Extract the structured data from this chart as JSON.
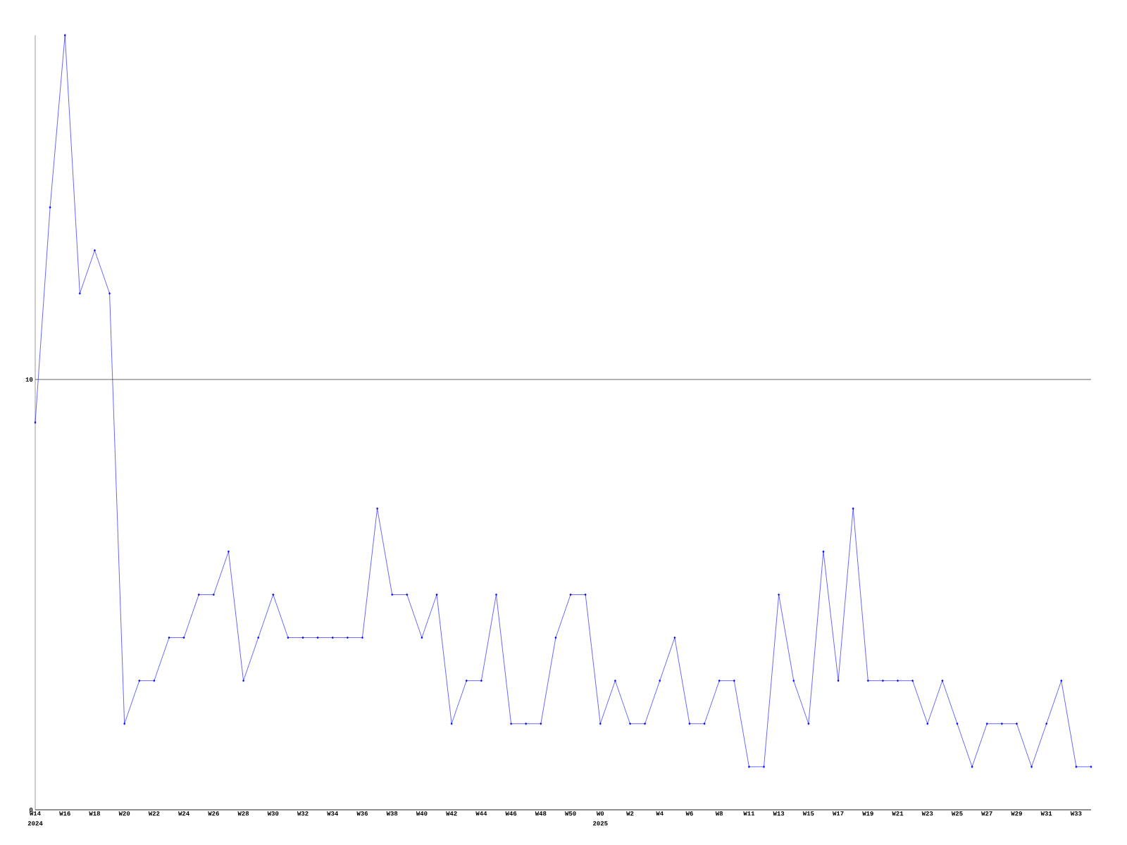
{
  "chart_data": {
    "type": "line",
    "categories": [
      "W14",
      null,
      "W16",
      null,
      "W18",
      null,
      "W20",
      null,
      "W22",
      null,
      "W24",
      null,
      "W26",
      null,
      "W28",
      null,
      "W30",
      null,
      "W32",
      null,
      "W34",
      null,
      "W36",
      null,
      "W38",
      null,
      "W40",
      null,
      "W42",
      null,
      "W44",
      null,
      "W46",
      null,
      "W48",
      null,
      "W50",
      null,
      "W0",
      null,
      "W2",
      null,
      "W4",
      null,
      "W6",
      null,
      "W8",
      null,
      "W11",
      null,
      "W13",
      null,
      "W15",
      null,
      "W17",
      null,
      "W19",
      null,
      "W21",
      null,
      "W23",
      null,
      "W25",
      null,
      "W27",
      null,
      "W29",
      null,
      "W31",
      null,
      "W33",
      null
    ],
    "values": [
      9,
      14,
      18,
      12,
      13,
      12,
      2,
      3,
      3,
      4,
      4,
      5,
      5,
      6,
      3,
      4,
      5,
      4,
      4,
      4,
      4,
      4,
      4,
      7,
      5,
      5,
      4,
      5,
      2,
      3,
      3,
      5,
      2,
      2,
      2,
      4,
      5,
      5,
      2,
      3,
      2,
      2,
      3,
      4,
      2,
      2,
      3,
      3,
      1,
      1,
      5,
      3,
      2,
      6,
      3,
      7,
      3,
      3,
      3,
      3,
      2,
      3,
      2,
      1,
      2,
      2,
      2,
      1,
      2,
      3,
      1,
      1
    ],
    "color": "#0000ff",
    "marker": "diamond",
    "ylim": [
      0,
      18
    ],
    "yticks": [
      0,
      10
    ],
    "grid": "y",
    "annotations": [
      "2024",
      "2025"
    ]
  }
}
